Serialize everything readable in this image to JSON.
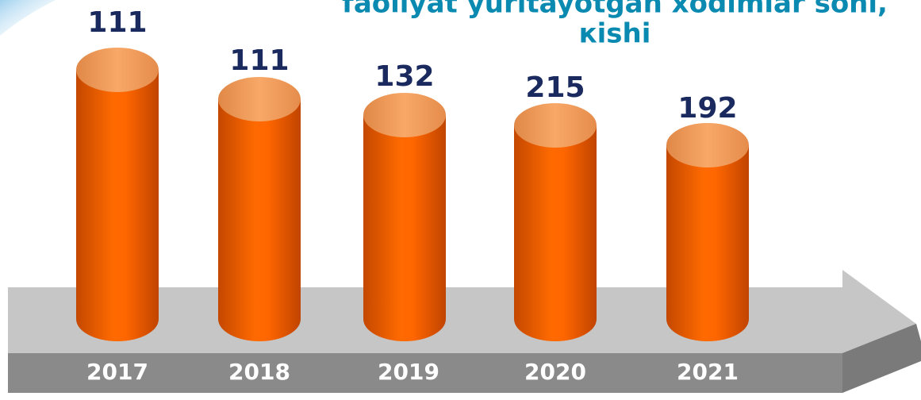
{
  "title": [
    "faoliyat yuritayotgan xodimlar soni,",
    "кishi"
  ],
  "items": [
    {
      "year": "2017",
      "value": 111
    },
    {
      "year": "2018",
      "value": 111
    },
    {
      "year": "2019",
      "value": 132
    },
    {
      "year": "2020",
      "value": 215
    },
    {
      "year": "2021",
      "value": 192
    }
  ]
}
